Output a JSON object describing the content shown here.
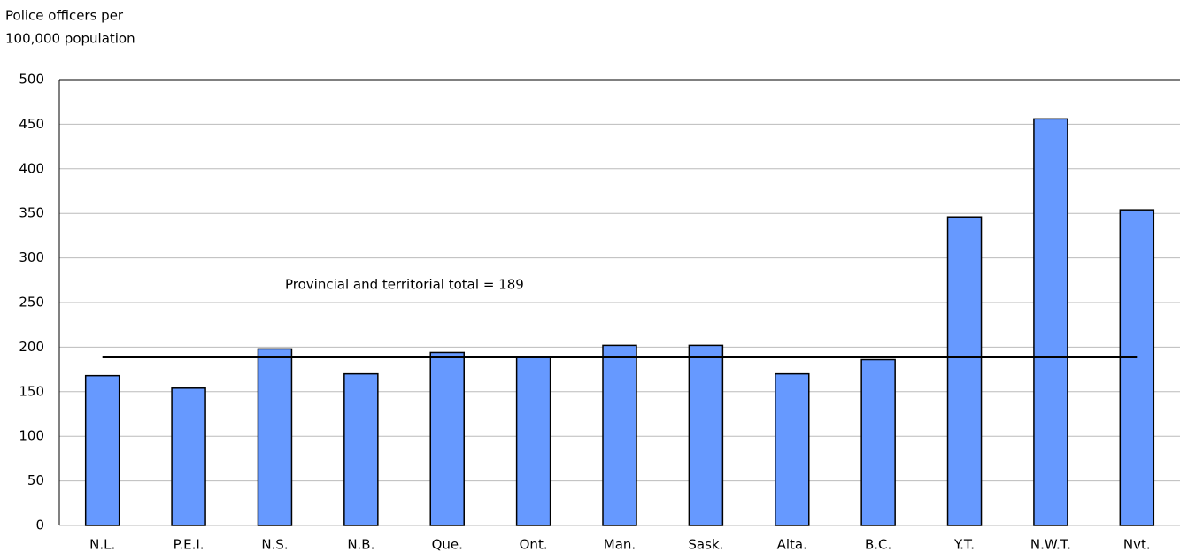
{
  "chart_data": {
    "type": "bar",
    "ylabel": [
      "Police officers per",
      "100,000 population"
    ],
    "categories": [
      "N.L.",
      "P.E.I.",
      "N.S.",
      "N.B.",
      "Que.",
      "Ont.",
      "Man.",
      "Sask.",
      "Alta.",
      "B.C.",
      "Y.T.",
      "N.W.T.",
      "Nvt."
    ],
    "values": [
      168,
      154,
      198,
      170,
      194,
      189,
      202,
      202,
      170,
      186,
      346,
      456,
      354
    ],
    "color": "#6699ff",
    "ylim": [
      0,
      500
    ],
    "yticks": [
      0,
      50,
      100,
      150,
      200,
      250,
      300,
      350,
      400,
      450,
      500
    ],
    "grid": true,
    "reference_line": {
      "value": 189,
      "label": "Provincial and territorial total = 189"
    }
  }
}
